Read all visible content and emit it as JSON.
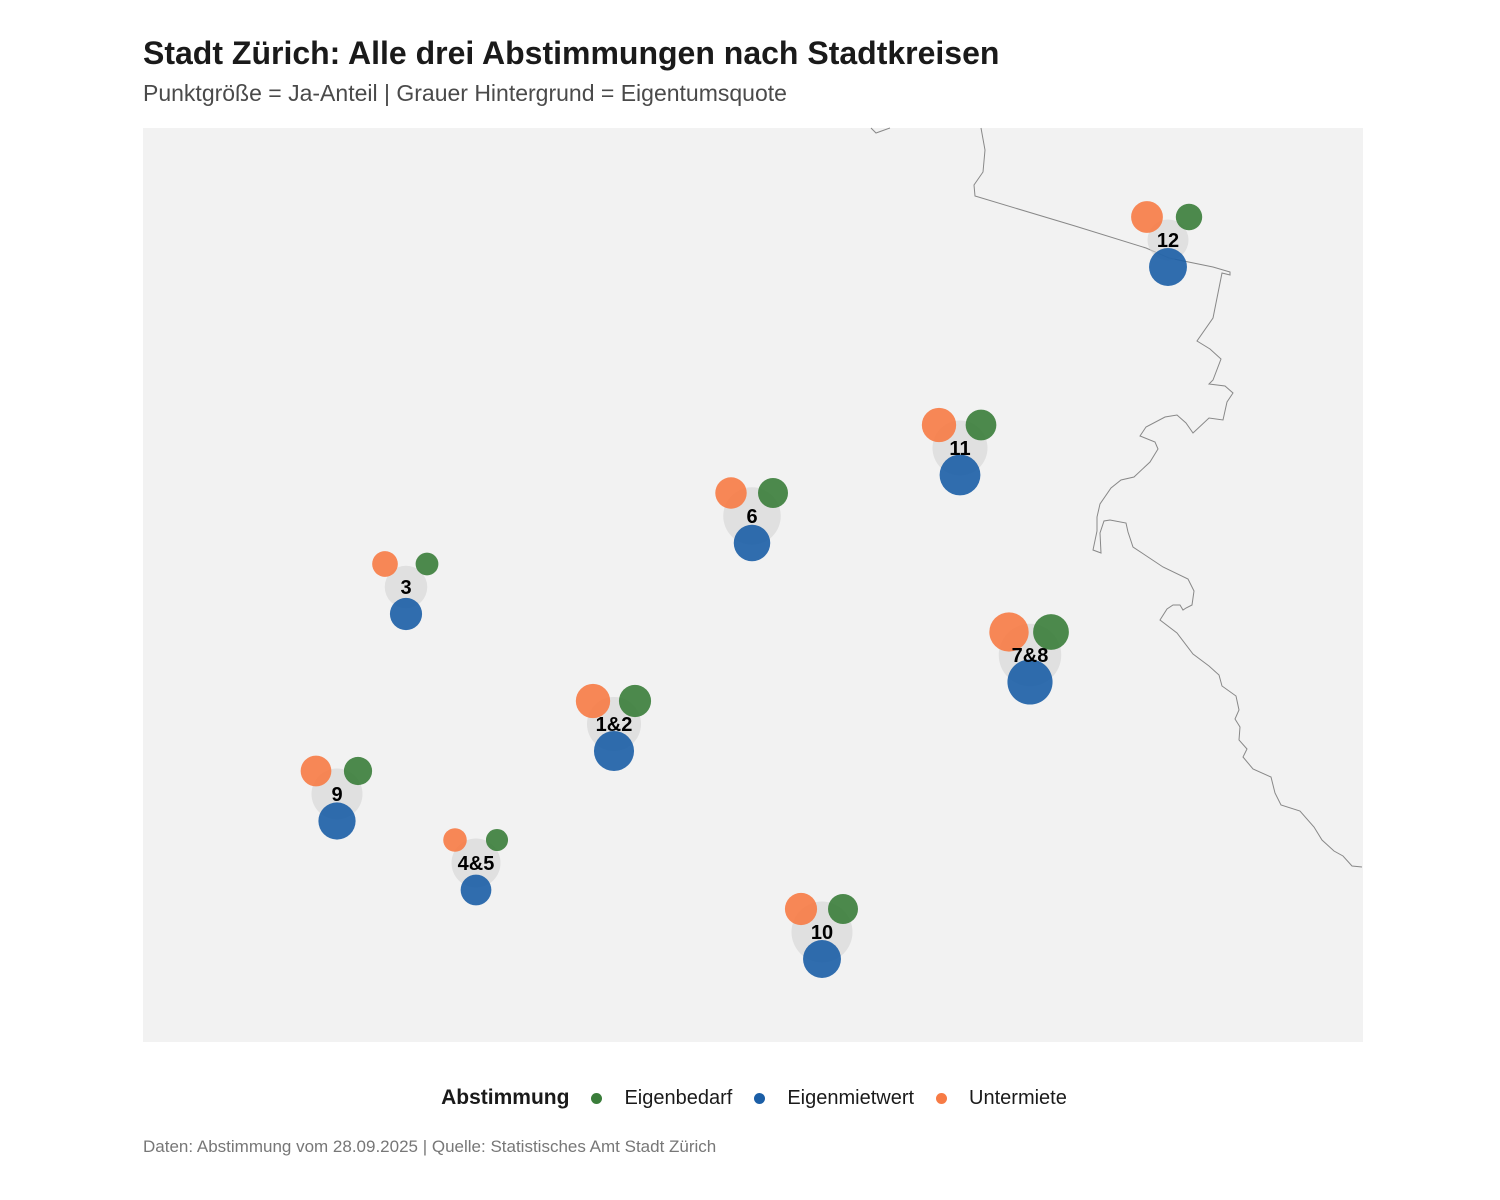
{
  "title": "Stadt Zürich: Alle drei Abstimmungen nach Stadtkreisen",
  "subtitle": "Punktgröße = Ja-Anteil | Grauer Hintergrund = Eigentumsquote",
  "caption": "Daten: Abstimmung vom 28.09.2025 | Quelle: Statistisches Amt Stadt Zürich",
  "legend": {
    "title": "Abstimmung",
    "items": [
      {
        "label": "Eigenbedarf",
        "color": "#3a7d3a"
      },
      {
        "label": "Eigenmietwert",
        "color": "#1b5ea6"
      },
      {
        "label": "Untermiete",
        "color": "#f77b45"
      }
    ]
  },
  "colors": {
    "eigenbedarf": "#3a7d3a",
    "eigenmietwert": "#1b5ea6",
    "untermiete": "#f77b45",
    "map_bg": "#f2f2f2",
    "background_circle": "#d4d4d4",
    "border": "#888888"
  },
  "map_data": {
    "districts": [
      {
        "label": "12",
        "eigentum": 0.42,
        "eigenbedarf": 0.4,
        "eigenmietwert": 0.72,
        "untermiete": 0.55
      },
      {
        "label": "11",
        "eigentum": 0.7,
        "eigenbedarf": 0.52,
        "eigenmietwert": 0.8,
        "untermiete": 0.62
      },
      {
        "label": "6",
        "eigentum": 0.75,
        "eigenbedarf": 0.5,
        "eigenmietwert": 0.68,
        "untermiete": 0.54
      },
      {
        "label": "3",
        "eigentum": 0.45,
        "eigenbedarf": 0.3,
        "eigenmietwert": 0.56,
        "untermiete": 0.38
      },
      {
        "label": "7&8",
        "eigentum": 0.85,
        "eigenbedarf": 0.66,
        "eigenmietwert": 0.92,
        "untermiete": 0.76
      },
      {
        "label": "1&2",
        "eigentum": 0.68,
        "eigenbedarf": 0.56,
        "eigenmietwert": 0.78,
        "untermiete": 0.62
      },
      {
        "label": "9",
        "eigentum": 0.62,
        "eigenbedarf": 0.45,
        "eigenmietwert": 0.7,
        "untermiete": 0.52
      },
      {
        "label": "4&5",
        "eigentum": 0.58,
        "eigenbedarf": 0.28,
        "eigenmietwert": 0.52,
        "untermiete": 0.32
      },
      {
        "label": "10",
        "eigentum": 0.82,
        "eigenbedarf": 0.5,
        "eigenmietwert": 0.72,
        "untermiete": 0.56
      }
    ]
  }
}
